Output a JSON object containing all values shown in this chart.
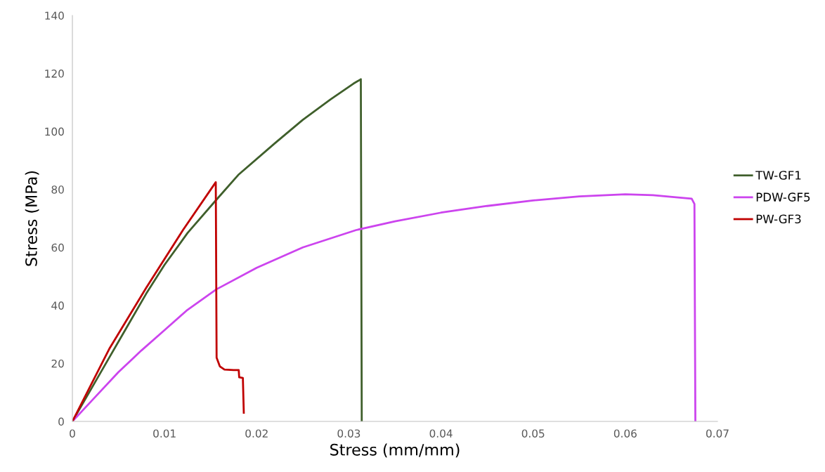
{
  "chart_data": {
    "type": "line",
    "xlabel": "Stress (mm/mm)",
    "ylabel": "Stress (MPa)",
    "xlim": [
      0,
      0.07
    ],
    "xticks": [
      {
        "value": 0,
        "label": "0"
      },
      0.01,
      0.02,
      0.03,
      0.04,
      0.05,
      0.06,
      0.07
    ],
    "ylim": [
      0,
      140
    ],
    "yticks": [
      0,
      20,
      40,
      60,
      80,
      100,
      120,
      140
    ],
    "grid": false,
    "legend": "right",
    "marker": "none",
    "line_style": "solid",
    "series": [
      {
        "name": "TW-GF1",
        "color": "#3f5f2b",
        "x": [
          0,
          0.002,
          0.004,
          0.006,
          0.008,
          0.01,
          0.0125,
          0.0155,
          0.018,
          0.022,
          0.025,
          0.028,
          0.0305,
          0.0313,
          0.0314
        ],
        "values": [
          0,
          11,
          22,
          33,
          44,
          54,
          65,
          76,
          85,
          96,
          104,
          111,
          116.5,
          118,
          0
        ]
      },
      {
        "name": "PDW-GF5",
        "color": "#cc44ee",
        "x": [
          0,
          0.0025,
          0.005,
          0.0075,
          0.01,
          0.0125,
          0.0156,
          0.02,
          0.025,
          0.0308,
          0.035,
          0.04,
          0.045,
          0.05,
          0.055,
          0.06,
          0.063,
          0.0655,
          0.0672,
          0.0675,
          0.0676
        ],
        "values": [
          0,
          8.5,
          17,
          24.5,
          31.5,
          38.5,
          45.5,
          53,
          60,
          66,
          69,
          72,
          74.3,
          76.2,
          77.6,
          78.3,
          78,
          77.3,
          76.8,
          75,
          0
        ]
      },
      {
        "name": "PW-GF3",
        "color": "#c00000",
        "x": [
          0,
          0.004,
          0.008,
          0.012,
          0.01556,
          0.01565,
          0.016,
          0.0165,
          0.0175,
          0.01805,
          0.0181,
          0.0185,
          0.0186
        ],
        "values": [
          0,
          25,
          46,
          66,
          82.5,
          22,
          19,
          17.9,
          17.7,
          17.7,
          15.2,
          15,
          3
        ]
      }
    ]
  }
}
